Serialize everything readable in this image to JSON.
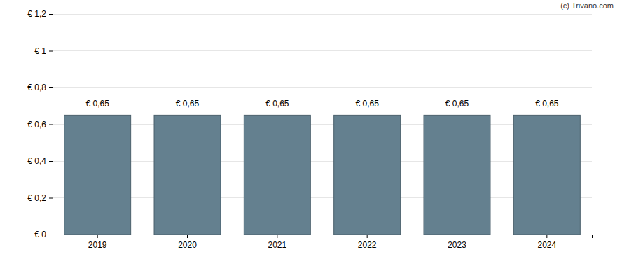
{
  "chart_data": {
    "type": "bar",
    "categories": [
      "2019",
      "2020",
      "2021",
      "2022",
      "2023",
      "2024"
    ],
    "values": [
      0.65,
      0.65,
      0.65,
      0.65,
      0.65,
      0.65
    ],
    "value_labels": [
      "€ 0,65",
      "€ 0,65",
      "€ 0,65",
      "€ 0,65",
      "€ 0,65",
      "€ 0,65"
    ],
    "color": "#64808f",
    "ylim": [
      0,
      1.2
    ],
    "yticks": [
      {
        "value": 0,
        "label": "€ 0"
      },
      {
        "value": 0.2,
        "label": "€ 0,2"
      },
      {
        "value": 0.4,
        "label": "€ 0,4"
      },
      {
        "value": 0.6,
        "label": "€ 0,6"
      },
      {
        "value": 0.8,
        "label": "€ 0,8"
      },
      {
        "value": 1,
        "label": "€ 1"
      },
      {
        "value": 1.2,
        "label": "€ 1,2"
      }
    ],
    "grid": true,
    "data_labels": true,
    "annotations": [
      "(c) Trivano.com"
    ]
  }
}
